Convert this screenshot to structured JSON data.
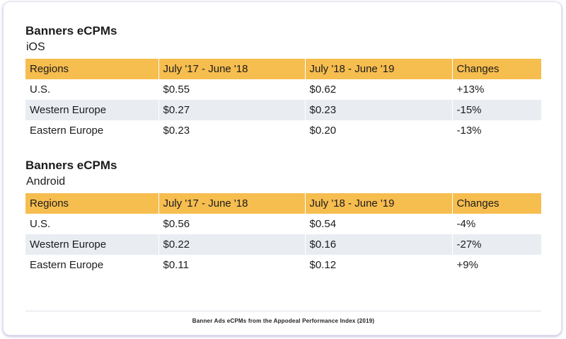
{
  "tables": [
    {
      "title": "Banners eCPMs",
      "subtitle": "iOS",
      "headers": [
        "Regions",
        "July '17 - June '18",
        "July '18 - June '19",
        "Changes"
      ],
      "rows": [
        [
          "U.S.",
          "$0.55",
          "$0.62",
          "+13%"
        ],
        [
          "Western Europe",
          "$0.27",
          "$0.23",
          "-15%"
        ],
        [
          "Eastern Europe",
          "$0.23",
          "$0.20",
          "-13%"
        ]
      ]
    },
    {
      "title": "Banners eCPMs",
      "subtitle": "Android",
      "headers": [
        "Regions",
        "July '17 - June '18",
        "July '18 - June '19",
        "Changes"
      ],
      "rows": [
        [
          "U.S.",
          "$0.56",
          "$0.54",
          "-4%"
        ],
        [
          "Western Europe",
          "$0.22",
          "$0.16",
          "-27%"
        ],
        [
          "Eastern Europe",
          "$0.11",
          "$0.12",
          "+9%"
        ]
      ]
    }
  ],
  "caption": "Banner Ads eCPMs from the Appodeal Performance Index (2019)",
  "colors": {
    "header_bg": "#f6bd4f",
    "alt_row_bg": "#e9edf2"
  }
}
